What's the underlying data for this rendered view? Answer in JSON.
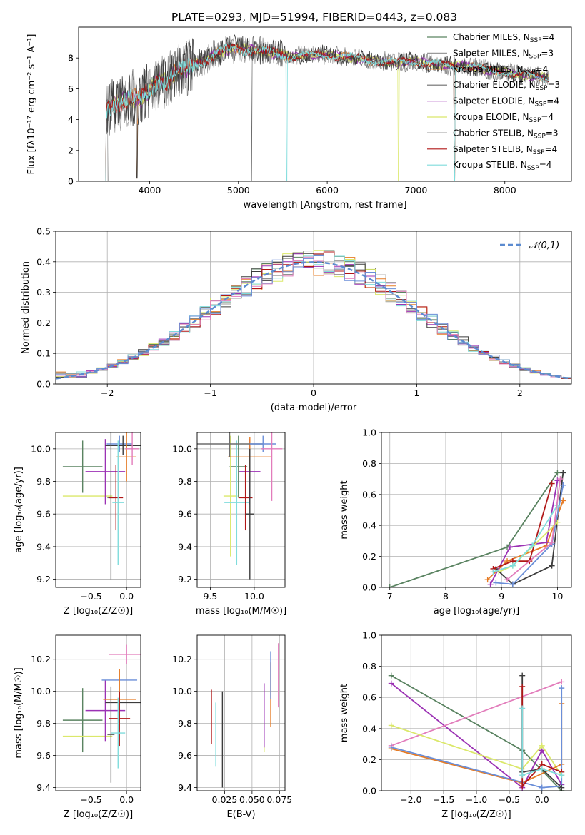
{
  "title": "PLATE=0293, MJD=51994, FIBERID=0443, z=0.083",
  "colors": {
    "c0": "#5a8361",
    "c1": "#9a9a9a",
    "c2": "#e67c26",
    "c3": "#6d6d6d",
    "c4": "#9b31b4",
    "c5": "#dbe86a",
    "c6": "#3c3c3c",
    "c7": "#b01616",
    "c8": "#7fdcdc",
    "pink": "#e27cbb",
    "blue": "#6a8ed8"
  },
  "chart_data": [
    {
      "type": "line",
      "id": "spectrum",
      "xlabel": "wavelength [Angstrom, rest frame]",
      "ylabel": "Flux [fλ10⁻¹⁷ erg cm⁻² s⁻¹ A⁻¹]",
      "xlim": [
        3200,
        8750
      ],
      "ylim": [
        0,
        10
      ],
      "xticks": [
        4000,
        5000,
        6000,
        7000,
        8000
      ],
      "yticks": [
        0,
        2,
        4,
        6,
        8
      ],
      "grid": false,
      "legend": "top-right",
      "anchor_x": [
        3500,
        3600,
        3700,
        3800,
        3900,
        4000,
        4100,
        4200,
        4300,
        4400,
        4500,
        4600,
        4700,
        4800,
        4900,
        5000,
        5200,
        5400,
        5600,
        5800,
        6000,
        6200,
        6400,
        6600,
        6800,
        7000,
        7200,
        7400,
        7600,
        7800,
        8000,
        8200,
        8400,
        8500
      ],
      "anchor_y": [
        4.5,
        5.0,
        5.2,
        5.4,
        5.3,
        5.9,
        6.6,
        6.4,
        7.1,
        7.3,
        7.6,
        7.8,
        8.1,
        8.4,
        8.6,
        8.6,
        8.5,
        8.3,
        8.1,
        8.2,
        8.2,
        8.1,
        7.9,
        7.8,
        7.7,
        7.8,
        7.6,
        7.5,
        7.5,
        7.2,
        7.1,
        6.9,
        6.8,
        6.7
      ],
      "series": [
        {
          "name": "Chabrier MILES, N<sub>SSP</sub>=4",
          "color": "#5a8361"
        },
        {
          "name": "Salpeter MILES, N<sub>SSP</sub>=3",
          "color": "#9a9a9a"
        },
        {
          "name": "Kroupa MILES, N<sub>SSP</sub>=4",
          "color": "#e67c26"
        },
        {
          "name": "Chabrier ELODIE, N<sub>SSP</sub>=3",
          "color": "#6d6d6d"
        },
        {
          "name": "Salpeter ELODIE, N<sub>SSP</sub>=4",
          "color": "#9b31b4"
        },
        {
          "name": "Kroupa ELODIE, N<sub>SSP</sub>=4",
          "color": "#dbe86a"
        },
        {
          "name": "Chabrier STELIB, N<sub>SSP</sub>=3",
          "color": "#3c3c3c"
        },
        {
          "name": "Salpeter STELIB, N<sub>SSP</sub>=4",
          "color": "#b01616"
        },
        {
          "name": "Kroupa STELIB, N<sub>SSP</sub>=4",
          "color": "#7fdcdc"
        }
      ]
    },
    {
      "type": "line",
      "id": "histogram",
      "xlabel": "(data-model)/error",
      "ylabel": "Normed distribution",
      "xlim": [
        -2.5,
        2.5
      ],
      "ylim": [
        0,
        0.5
      ],
      "xticks": [
        -2,
        -1,
        0,
        1,
        2
      ],
      "yticks": [
        0,
        0.1,
        0.2,
        0.3,
        0.4,
        0.5
      ],
      "grid": true,
      "legend": "top-right",
      "legend_label": "𝒩(0,1)",
      "curve_color": "#5b8bd0",
      "bin_width": 0.1,
      "hist_colors": [
        "#5a8361",
        "#9a9a9a",
        "#e67c26",
        "#6d6d6d",
        "#9b31b4",
        "#dbe86a",
        "#3c3c3c",
        "#b01616",
        "#7fdcdc",
        "#e27cbb",
        "#6a8ed8"
      ]
    },
    {
      "type": "scatter",
      "id": "age_vs_z",
      "xlabel": "Z [log₁₀(Z/Z☉)]",
      "ylabel": "age  [log₁₀(age/yr)]",
      "xlim": [
        -1.0,
        0.2
      ],
      "ylim": [
        9.15,
        10.1
      ],
      "xticks": [
        -0.5,
        0.0
      ],
      "yticks": [
        9.2,
        9.4,
        9.6,
        9.8,
        10.0
      ],
      "grid": true,
      "points": [
        {
          "x": -0.62,
          "xerr": 0.28,
          "y": 9.89,
          "yerr": 0.16,
          "c": "#5a8361"
        },
        {
          "x": -0.55,
          "xerr": 0.35,
          "y": 9.71,
          "yerr": 0.0,
          "c": "#dbe86a"
        },
        {
          "x": -0.3,
          "xerr": 0.28,
          "y": 9.86,
          "yerr": 0.2,
          "c": "#9b31b4"
        },
        {
          "x": -0.1,
          "xerr": 0.18,
          "y": 10.03,
          "yerr": 0.05,
          "c": "#6a8ed8"
        },
        {
          "x": -0.05,
          "xerr": 0.25,
          "y": 10.02,
          "yerr": 0.06,
          "c": "#3c3c3c"
        },
        {
          "x": 0.0,
          "xerr": 0.14,
          "y": 9.95,
          "yerr": 0.15,
          "c": "#e67c26"
        },
        {
          "x": -0.22,
          "xerr": 0.05,
          "y": 9.7,
          "yerr": 0.5,
          "c": "#6d6d6d"
        },
        {
          "x": -0.15,
          "xerr": 0.1,
          "y": 9.7,
          "yerr": 0.2,
          "c": "#b01616"
        },
        {
          "x": -0.12,
          "xerr": 0.08,
          "y": 9.67,
          "yerr": 0.38,
          "c": "#7fdcdc"
        },
        {
          "x": 0.08,
          "xerr": 0.1,
          "y": 10.0,
          "yerr": 0.1,
          "c": "#e27cbb"
        }
      ]
    },
    {
      "type": "scatter",
      "id": "age_vs_mass",
      "xlabel": "mass [log₁₀(M/M☉)]",
      "ylabel": "",
      "xlim": [
        9.35,
        10.35
      ],
      "ylim": [
        9.15,
        10.1
      ],
      "xticks": [
        9.5,
        10.0
      ],
      "yticks": [
        9.2,
        9.4,
        9.6,
        9.8,
        10.0
      ],
      "grid": true,
      "points": [
        {
          "x": 9.82,
          "xerr": 0.1,
          "y": 9.89,
          "yerr": 0.19,
          "c": "#5a8361"
        },
        {
          "x": 9.73,
          "xerr": 0.08,
          "y": 9.71,
          "yerr": 0.37,
          "c": "#dbe86a"
        },
        {
          "x": 9.8,
          "xerr": 0.14,
          "y": 9.67,
          "yerr": 0.38,
          "c": "#7fdcdc"
        },
        {
          "x": 9.95,
          "xerr": 0.12,
          "y": 9.86,
          "yerr": 0.2,
          "c": "#9b31b4"
        },
        {
          "x": 9.95,
          "xerr": 0.25,
          "y": 9.95,
          "yerr": 0.12,
          "c": "#e67c26"
        },
        {
          "x": 9.9,
          "xerr": 0.08,
          "y": 9.7,
          "yerr": 0.2,
          "c": "#b01616"
        },
        {
          "x": 9.72,
          "xerr": 0.38,
          "y": 10.03,
          "yerr": 0.08,
          "c": "#6d6d6d"
        },
        {
          "x": 10.1,
          "xerr": 0.15,
          "y": 10.03,
          "yerr": 0.05,
          "c": "#6a8ed8"
        },
        {
          "x": 10.2,
          "xerr": 0.12,
          "y": 10.0,
          "yerr": 0.32,
          "c": "#e27cbb"
        },
        {
          "x": 9.95,
          "xerr": 0.05,
          "y": 9.6,
          "yerr": 0.4,
          "c": "#3c3c3c"
        }
      ]
    },
    {
      "type": "line",
      "id": "mw_vs_age",
      "xlabel": "age  [log₁₀(age/yr)]",
      "ylabel": "mass weight",
      "xlim": [
        6.85,
        10.25
      ],
      "ylim": [
        0,
        1
      ],
      "xticks": [
        7,
        8,
        9,
        10
      ],
      "yticks": [
        0,
        0.2,
        0.4,
        0.6,
        0.8,
        1.0
      ],
      "grid": true,
      "series": [
        {
          "c": "#5a8361",
          "x": [
            7.0,
            9.1,
            10.0
          ],
          "y": [
            0.0,
            0.26,
            0.74
          ]
        },
        {
          "c": "#3c3c3c",
          "x": [
            8.9,
            9.2,
            9.9,
            10.1
          ],
          "y": [
            0.12,
            0.02,
            0.14,
            0.74
          ]
        },
        {
          "c": "#e67c26",
          "x": [
            8.75,
            9.1,
            9.8,
            10.1
          ],
          "y": [
            0.05,
            0.17,
            0.27,
            0.56
          ]
        },
        {
          "c": "#6a8ed8",
          "x": [
            8.9,
            9.2,
            9.9,
            10.1
          ],
          "y": [
            0.03,
            0.02,
            0.28,
            0.66
          ]
        },
        {
          "c": "#9b31b4",
          "x": [
            8.8,
            9.15,
            9.8,
            10.0
          ],
          "y": [
            0.02,
            0.26,
            0.29,
            0.69
          ]
        },
        {
          "c": "#b01616",
          "x": [
            8.85,
            9.2,
            9.5,
            9.9
          ],
          "y": [
            0.12,
            0.17,
            0.17,
            0.67
          ]
        },
        {
          "c": "#dbe86a",
          "x": [
            8.95,
            9.2,
            10.0
          ],
          "y": [
            0.1,
            0.14,
            0.42
          ]
        },
        {
          "c": "#7fdcdc",
          "x": [
            8.85,
            9.2,
            9.55,
            10.0
          ],
          "y": [
            0.1,
            0.14,
            0.27,
            0.53
          ]
        },
        {
          "c": "#e27cbb",
          "x": [
            9.1,
            9.9,
            10.05
          ],
          "y": [
            0.05,
            0.29,
            0.7
          ]
        }
      ]
    },
    {
      "type": "scatter",
      "id": "mass_vs_z",
      "xlabel": "Z [log₁₀(Z/Z☉)]",
      "ylabel": "mass [log₁₀(M/M☉)]",
      "xlim": [
        -1.0,
        0.2
      ],
      "ylim": [
        9.38,
        10.35
      ],
      "xticks": [
        -0.5,
        0.0
      ],
      "yticks": [
        9.4,
        9.6,
        9.8,
        10.0,
        10.2
      ],
      "grid": true,
      "points": [
        {
          "x": -0.62,
          "xerr": 0.28,
          "y": 9.82,
          "yerr": 0.2,
          "c": "#5a8361"
        },
        {
          "x": -0.55,
          "xerr": 0.35,
          "y": 9.72,
          "yerr": 0.0,
          "c": "#dbe86a"
        },
        {
          "x": -0.3,
          "xerr": 0.28,
          "y": 9.88,
          "yerr": 0.19,
          "c": "#9b31b4"
        },
        {
          "x": -0.1,
          "xerr": 0.25,
          "y": 10.07,
          "yerr": 0.0,
          "c": "#6a8ed8"
        },
        {
          "x": -0.05,
          "xerr": 0.25,
          "y": 9.93,
          "yerr": 0.0,
          "c": "#3c3c3c"
        },
        {
          "x": -0.1,
          "xerr": 0.23,
          "y": 9.95,
          "yerr": 0.19,
          "c": "#e67c26"
        },
        {
          "x": -0.22,
          "xerr": 0.05,
          "y": 9.73,
          "yerr": 0.3,
          "c": "#6d6d6d"
        },
        {
          "x": -0.1,
          "xerr": 0.15,
          "y": 9.83,
          "yerr": 0.17,
          "c": "#b01616"
        },
        {
          "x": -0.12,
          "xerr": 0.1,
          "y": 9.74,
          "yerr": 0.22,
          "c": "#7fdcdc"
        },
        {
          "x": 0.0,
          "xerr": 0.25,
          "y": 10.23,
          "yerr": 0.06,
          "c": "#e27cbb"
        }
      ]
    },
    {
      "type": "scatter",
      "id": "mass_vs_ebv",
      "xlabel": "E(B-V)",
      "ylabel": "",
      "xlim": [
        0.0,
        0.08
      ],
      "ylim": [
        9.38,
        10.35
      ],
      "xticks": [
        0.025,
        0.05,
        0.075
      ],
      "yticks": [
        9.4,
        9.6,
        9.8,
        10.0,
        10.2
      ],
      "grid": true,
      "points": [
        {
          "x": 0.013,
          "y": 9.84,
          "yerr": 0.17,
          "c": "#b01616"
        },
        {
          "x": 0.017,
          "y": 9.73,
          "yerr": 0.2,
          "c": "#7fdcdc"
        },
        {
          "x": 0.023,
          "y": 9.7,
          "yerr": 0.3,
          "c": "#3c3c3c"
        },
        {
          "x": 0.061,
          "y": 9.8,
          "yerr": 0.18,
          "c": "#dbe86a"
        },
        {
          "x": 0.061,
          "y": 9.85,
          "yerr": 0.2,
          "c": "#9b31b4"
        },
        {
          "x": 0.067,
          "y": 9.98,
          "yerr": 0.2,
          "c": "#e67c26"
        },
        {
          "x": 0.067,
          "y": 10.1,
          "yerr": 0.15,
          "c": "#6a8ed8"
        },
        {
          "x": 0.074,
          "y": 10.1,
          "yerr": 0.2,
          "c": "#e27cbb"
        }
      ]
    },
    {
      "type": "line",
      "id": "mw_vs_z",
      "xlabel": "Z [log₁₀(Z/Z☉)]",
      "ylabel": "mass weight",
      "xlim": [
        -2.45,
        0.45
      ],
      "ylim": [
        0,
        1
      ],
      "xticks": [
        -2.0,
        -1.5,
        -1.0,
        -0.5,
        0.0
      ],
      "yticks": [
        0,
        0.2,
        0.4,
        0.6,
        0.8,
        1.0
      ],
      "grid": true,
      "series": [
        {
          "c": "#5a8361",
          "x": [
            -2.3,
            -0.3,
            0.3
          ],
          "y": [
            0.74,
            0.26,
            0.0
          ]
        },
        {
          "c": "#9b31b4",
          "x": [
            -2.3,
            -0.3,
            0.0,
            0.3
          ],
          "y": [
            0.69,
            0.02,
            0.26,
            0.04
          ]
        },
        {
          "c": "#e27cbb",
          "x": [
            -2.3,
            0.3
          ],
          "y": [
            0.29,
            0.7
          ]
        },
        {
          "c": "#dbe86a",
          "x": [
            -2.3,
            -0.3,
            0.0,
            0.3
          ],
          "y": [
            0.42,
            0.14,
            0.29,
            0.1
          ]
        },
        {
          "c": "#e67c26",
          "x": [
            -2.3,
            -0.3,
            0.3,
            0.3
          ],
          "y": [
            0.27,
            0.05,
            0.17,
            0.56
          ]
        },
        {
          "c": "#6a8ed8",
          "x": [
            -2.3,
            0.0,
            0.3,
            0.3
          ],
          "y": [
            0.28,
            0.02,
            0.03,
            0.66
          ]
        },
        {
          "c": "#3c3c3c",
          "x": [
            -0.3,
            -0.3,
            0.0,
            0.3
          ],
          "y": [
            0.74,
            0.12,
            0.14,
            0.02
          ]
        },
        {
          "c": "#b01616",
          "x": [
            -0.3,
            -0.3,
            0.0,
            0.3
          ],
          "y": [
            0.67,
            0.03,
            0.17,
            0.12
          ]
        },
        {
          "c": "#7fdcdc",
          "x": [
            -0.3,
            -0.3,
            0.0,
            0.3
          ],
          "y": [
            0.53,
            0.1,
            0.14,
            0.1
          ]
        }
      ]
    }
  ]
}
